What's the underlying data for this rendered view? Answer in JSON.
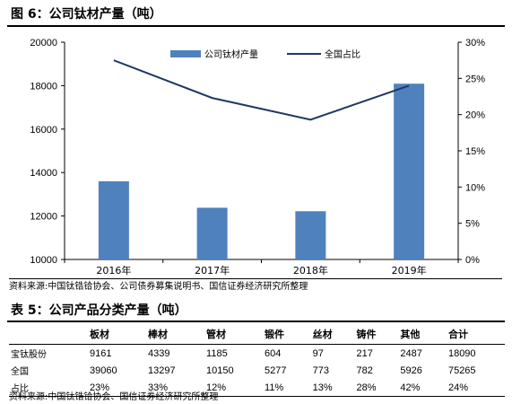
{
  "figure_title": "图 6：公司钛材产量（吨）",
  "chart_data": {
    "type": "bar",
    "categories": [
      "2016年",
      "2017年",
      "2018年",
      "2019年"
    ],
    "series": [
      {
        "name": "公司钛材产量",
        "kind": "bar",
        "axis": "left",
        "color": "#4F81BD",
        "values": [
          13600,
          12380,
          12220,
          18090
        ]
      },
      {
        "name": "全国占比",
        "kind": "line",
        "axis": "right",
        "color": "#1F3864",
        "values": [
          0.275,
          0.223,
          0.193,
          0.24
        ]
      }
    ],
    "ylim_left": [
      10000,
      20000
    ],
    "yticks_left": [
      "20000",
      "18000",
      "16000",
      "14000",
      "12000",
      "10000"
    ],
    "ytick_values_left": [
      20000,
      18000,
      16000,
      14000,
      12000,
      10000
    ],
    "ylim_right": [
      0,
      0.3
    ],
    "yticks_right": [
      "30%",
      "25%",
      "20%",
      "15%",
      "10%",
      "5%",
      "0%"
    ],
    "ytick_values_right": [
      0.3,
      0.25,
      0.2,
      0.15,
      0.1,
      0.05,
      0
    ],
    "legend_position": "top-center",
    "grid": false
  },
  "figure_source": "资料来源:中国钛锆铪协会、公司债券募集说明书、国信证券经济研究所整理",
  "table": {
    "title": "表 5：公司产品分类产量（吨）",
    "headers": [
      "",
      "板材",
      "棒材",
      "管材",
      "锻件",
      "丝材",
      "铸件",
      "其他",
      "合计"
    ],
    "rows": [
      {
        "label": "宝钛股份",
        "values": [
          "9161",
          "4339",
          "1185",
          "604",
          "97",
          "217",
          "2487",
          "18090"
        ]
      },
      {
        "label": "全国",
        "values": [
          "39060",
          "13297",
          "10150",
          "5277",
          "773",
          "782",
          "5926",
          "75265"
        ]
      },
      {
        "label": "占比",
        "values": [
          "23%",
          "33%",
          "12%",
          "11%",
          "13%",
          "28%",
          "42%",
          "24%"
        ]
      }
    ]
  },
  "table_source": "资料来源:中国钛锆铪协会、国信证券经济研究所整理"
}
